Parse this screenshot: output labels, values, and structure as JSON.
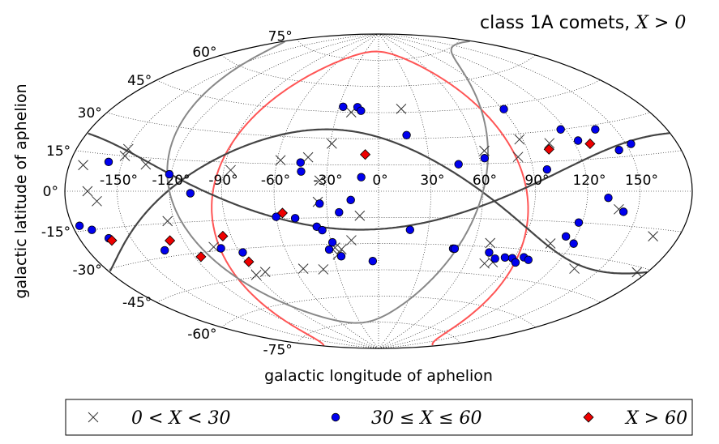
{
  "chart_data": {
    "type": "scatter",
    "projection": "aitoff",
    "title": "class 1A comets, ",
    "title_math": "X > 0",
    "xlabel": "galactic longitude of aphelion",
    "ylabel": "galactic latitude of aphelion",
    "xlim": [
      -180,
      180
    ],
    "ylim": [
      -90,
      90
    ],
    "grid": true,
    "lon_ticks": [
      {
        "value": -150,
        "label": "-150°"
      },
      {
        "value": -120,
        "label": "-120°"
      },
      {
        "value": -90,
        "label": "-90°"
      },
      {
        "value": -60,
        "label": "-60°"
      },
      {
        "value": -30,
        "label": "-30°"
      },
      {
        "value": 0,
        "label": "0°"
      },
      {
        "value": 30,
        "label": "30°"
      },
      {
        "value": 60,
        "label": "60°"
      },
      {
        "value": 90,
        "label": "90°"
      },
      {
        "value": 120,
        "label": "120°"
      },
      {
        "value": 150,
        "label": "150°"
      }
    ],
    "lat_ticks": [
      {
        "value": 75,
        "label": "75°"
      },
      {
        "value": 60,
        "label": "60°"
      },
      {
        "value": 45,
        "label": "45°"
      },
      {
        "value": 30,
        "label": "30°"
      },
      {
        "value": 15,
        "label": "15°"
      },
      {
        "value": 0,
        "label": "0°"
      },
      {
        "value": -15,
        "label": "-15°"
      },
      {
        "value": -30,
        "label": "-30°"
      },
      {
        "value": -45,
        "label": "-45°"
      },
      {
        "value": -60,
        "label": "-60°"
      },
      {
        "value": -75,
        "label": "-75°"
      }
    ],
    "curves": [
      {
        "name": "ecliptic",
        "color": "#ff5555"
      },
      {
        "name": "great-circle-dark-1",
        "color": "#444444"
      },
      {
        "name": "great-circle-dark-2",
        "color": "#444444"
      },
      {
        "name": "great-circle-grey",
        "color": "#888888"
      }
    ],
    "legend_position": "bottom",
    "series": [
      {
        "name": "0 < X < 30",
        "marker": "x",
        "color": "#333333",
        "points": [
          [
            -172,
            10
          ],
          [
            -167,
            0
          ],
          [
            -162,
            -4
          ],
          [
            -150,
            18
          ],
          [
            -150,
            15
          ],
          [
            -136,
            12
          ],
          [
            -124,
            -14
          ],
          [
            -104,
            -28
          ],
          [
            -90,
            -44
          ],
          [
            -82,
            -43
          ],
          [
            -86,
            11
          ],
          [
            -58,
            17
          ],
          [
            -42,
            19
          ],
          [
            -34,
            6
          ],
          [
            -35,
            -6
          ],
          [
            -29,
            27
          ],
          [
            -28,
            -32
          ],
          [
            -27,
            -36
          ],
          [
            -24,
            -33
          ],
          [
            -40,
            -44
          ],
          [
            -54,
            -43
          ],
          [
            -11,
            -14
          ],
          [
            -17,
            -28
          ],
          [
            -20,
            45
          ],
          [
            17,
            47
          ],
          [
            64,
            22
          ],
          [
            70,
            -28
          ],
          [
            73,
            -39
          ],
          [
            78,
            -38
          ],
          [
            83,
            18
          ],
          [
            88,
            27
          ],
          [
            105,
            24
          ],
          [
            107,
            -26
          ],
          [
            134,
            -36
          ],
          [
            139,
            -8
          ],
          [
            165,
            -18
          ],
          [
            174,
            -32
          ]
        ]
      },
      {
        "name": "30 ≤ X ≤ 60",
        "marker": "o",
        "color": "#0000ee",
        "points": [
          [
            -176,
            -13
          ],
          [
            -170,
            -15
          ],
          [
            -163,
            -19
          ],
          [
            -158,
            12
          ],
          [
            -135,
            -27
          ],
          [
            -121,
            8
          ],
          [
            -108,
            -1
          ],
          [
            -100,
            -29
          ],
          [
            -88,
            -32
          ],
          [
            -60,
            -14
          ],
          [
            -49,
            -15
          ],
          [
            -37,
            -20
          ],
          [
            -34,
            -7
          ],
          [
            -32,
            -33
          ],
          [
            -29,
            -29
          ],
          [
            -25,
            -37
          ],
          [
            -23,
            -12
          ],
          [
            -16,
            -5
          ],
          [
            -46,
            16
          ],
          [
            -45,
            11
          ],
          [
            -10,
            8
          ],
          [
            -34,
            -22
          ],
          [
            -27,
            48
          ],
          [
            -16,
            48
          ],
          [
            -13,
            46
          ],
          [
            -4,
            -40
          ],
          [
            18,
            32
          ],
          [
            19,
            -22
          ],
          [
            47,
            15
          ],
          [
            48,
            -32
          ],
          [
            49,
            -32
          ],
          [
            63,
            18
          ],
          [
            72,
            -33
          ],
          [
            78,
            -36
          ],
          [
            84,
            -35
          ],
          [
            89,
            -35
          ],
          [
            93,
            -37
          ],
          [
            96,
            -34
          ],
          [
            100,
            -35
          ],
          [
            91,
            43
          ],
          [
            98,
            11
          ],
          [
            114,
            -22
          ],
          [
            118,
            -15
          ],
          [
            121,
            -25
          ],
          [
            117,
            30
          ],
          [
            123,
            24
          ],
          [
            138,
            28
          ],
          [
            132,
            -3
          ],
          [
            142,
            -9
          ],
          [
            144,
            18
          ],
          [
            153,
            20
          ]
        ]
      },
      {
        "name": "X > 60",
        "marker": "D",
        "color": "#ee0000",
        "points": [
          [
            -162,
            -20
          ],
          [
            -128,
            -23
          ],
          [
            -116,
            -32
          ],
          [
            -95,
            -23
          ],
          [
            -88,
            -37
          ],
          [
            -56,
            -12
          ],
          [
            -8,
            21
          ],
          [
            103,
            21
          ],
          [
            129,
            22
          ]
        ]
      }
    ]
  }
}
